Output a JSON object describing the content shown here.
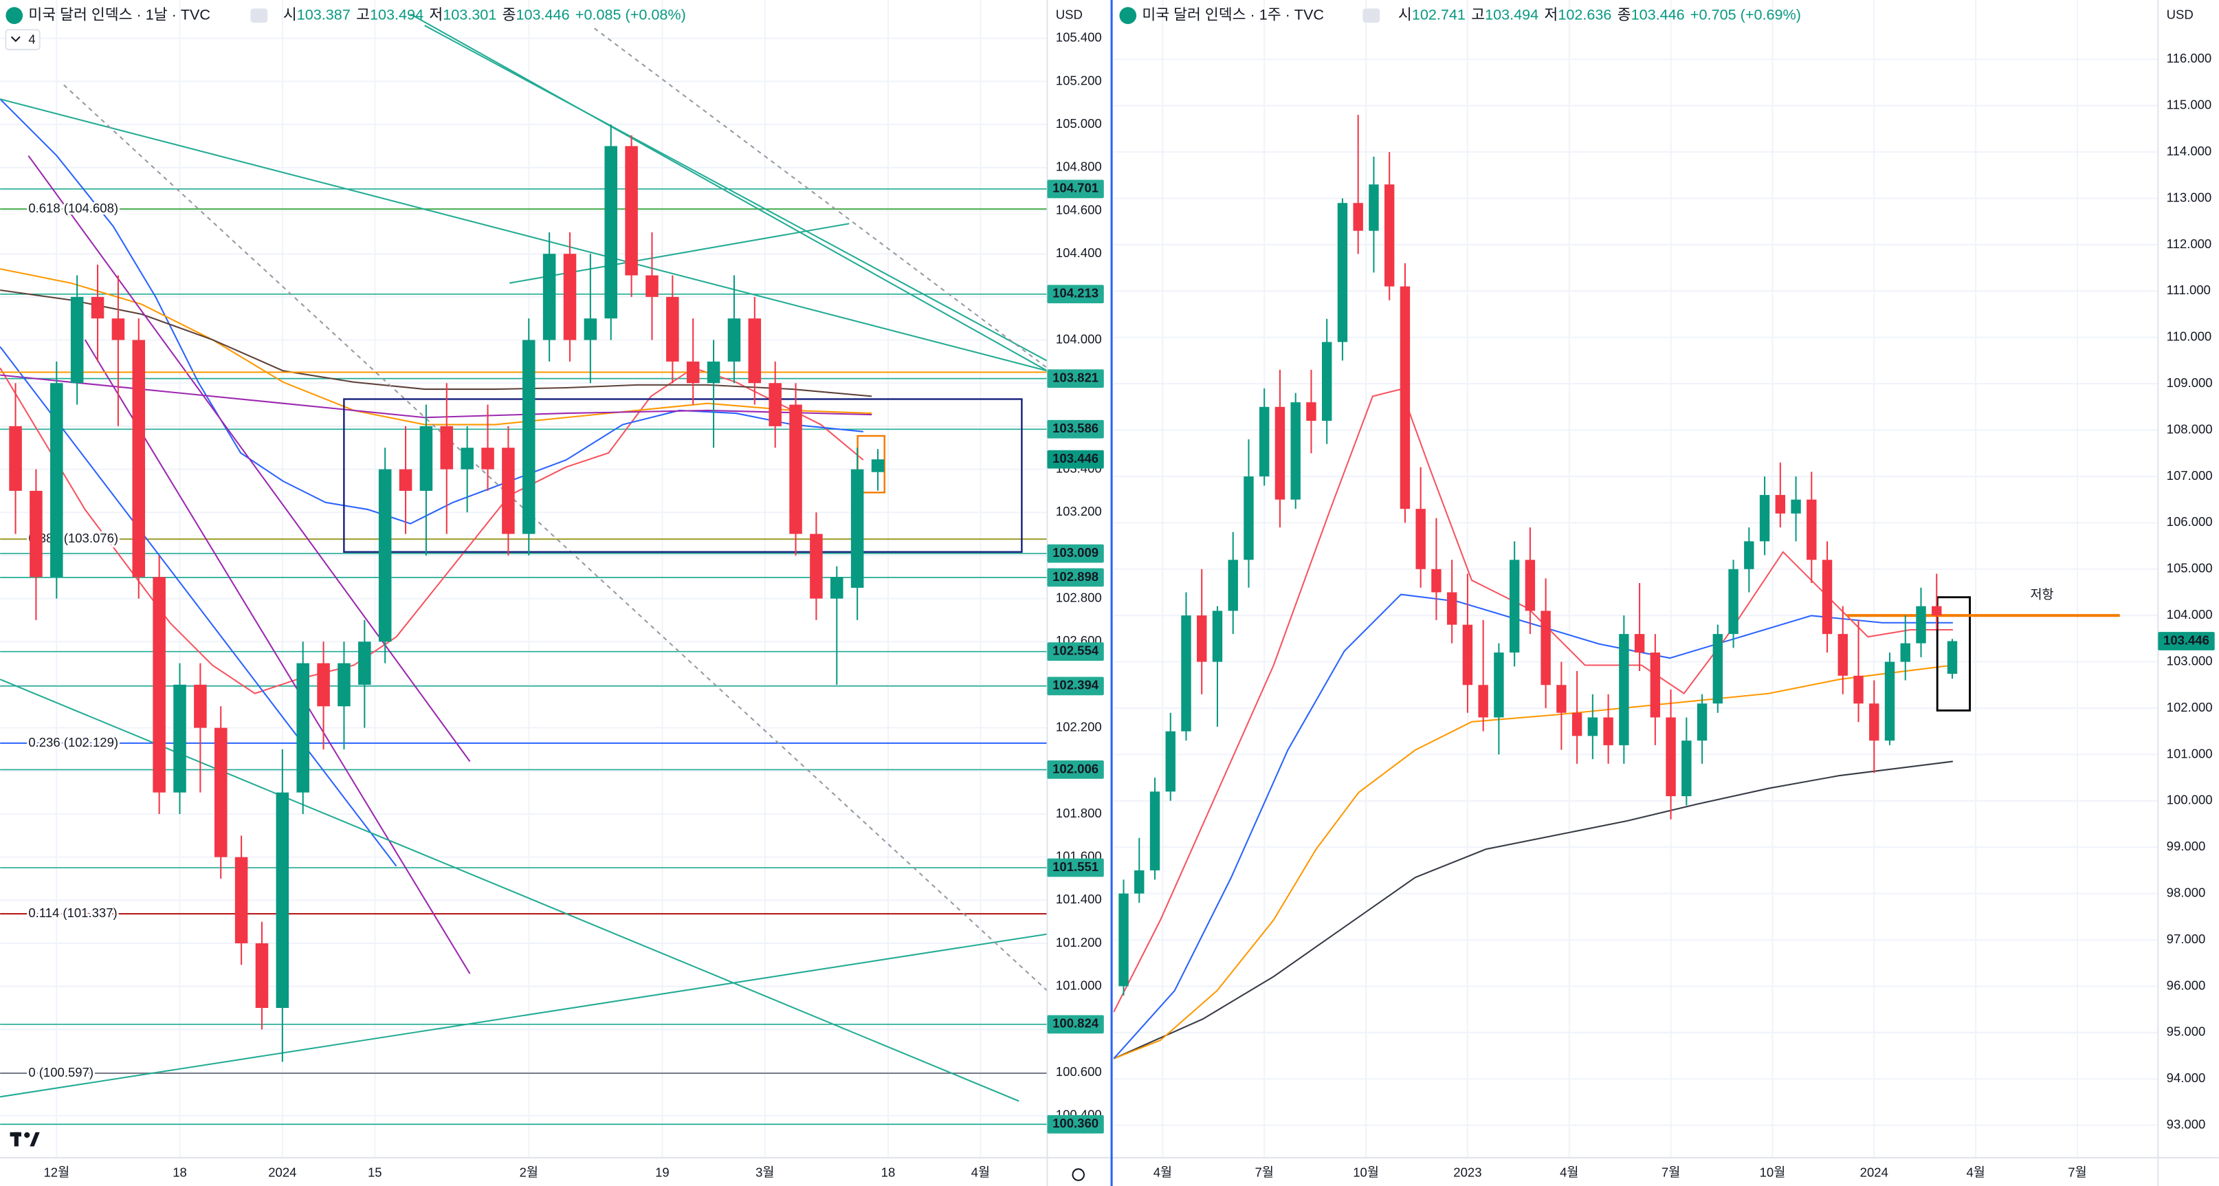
{
  "chart_data": [
    {
      "type": "candlestick",
      "title": "미국 달러 인덱스 · 1날 · TVC",
      "header": [
        {
          "label": "시",
          "text": "103.387"
        },
        {
          "label": "고",
          "text": "103.494"
        },
        {
          "label": "저",
          "text": "103.301"
        },
        {
          "label": "종",
          "text": "103.446"
        }
      ],
      "change": "+0.085 (+0.08%)",
      "currency": "USD",
      "badge": "4",
      "up_color": "#089981",
      "down_color": "#f23645",
      "candles": [
        [
          103.6,
          103.8,
          103.1,
          103.3
        ],
        [
          103.3,
          103.4,
          102.7,
          102.9
        ],
        [
          102.9,
          103.9,
          102.8,
          103.8
        ],
        [
          103.8,
          104.3,
          103.7,
          104.2
        ],
        [
          104.2,
          104.35,
          103.9,
          104.1
        ],
        [
          104.1,
          104.3,
          103.6,
          104.0
        ],
        [
          104.0,
          104.1,
          102.8,
          102.9
        ],
        [
          102.9,
          103.0,
          101.8,
          101.9
        ],
        [
          101.9,
          102.5,
          101.8,
          102.4
        ],
        [
          102.4,
          102.5,
          101.9,
          102.2
        ],
        [
          102.2,
          102.3,
          101.5,
          101.6
        ],
        [
          101.6,
          101.7,
          101.1,
          101.2
        ],
        [
          101.2,
          101.3,
          100.8,
          100.9
        ],
        [
          100.9,
          102.1,
          100.65,
          101.9
        ],
        [
          101.9,
          102.6,
          101.8,
          102.5
        ],
        [
          102.5,
          102.6,
          102.1,
          102.3
        ],
        [
          102.3,
          102.6,
          102.1,
          102.5
        ],
        [
          102.4,
          102.7,
          102.2,
          102.6
        ],
        [
          102.6,
          103.5,
          102.5,
          103.4
        ],
        [
          103.4,
          103.6,
          103.1,
          103.3
        ],
        [
          103.3,
          103.7,
          103.0,
          103.6
        ],
        [
          103.6,
          103.8,
          103.1,
          103.4
        ],
        [
          103.4,
          103.6,
          103.2,
          103.5
        ],
        [
          103.5,
          103.7,
          103.3,
          103.4
        ],
        [
          103.5,
          103.6,
          103.0,
          103.1
        ],
        [
          103.1,
          104.1,
          103.0,
          104.0
        ],
        [
          104.0,
          104.5,
          103.9,
          104.4
        ],
        [
          104.4,
          104.5,
          103.9,
          104.0
        ],
        [
          104.0,
          104.4,
          103.8,
          104.1
        ],
        [
          104.1,
          105.0,
          104.0,
          104.9
        ],
        [
          104.9,
          104.95,
          104.2,
          104.3
        ],
        [
          104.3,
          104.5,
          104.0,
          104.2
        ],
        [
          104.2,
          104.3,
          103.8,
          103.9
        ],
        [
          103.9,
          104.1,
          103.7,
          103.8
        ],
        [
          103.8,
          104.0,
          103.5,
          103.9
        ],
        [
          103.9,
          104.3,
          103.8,
          104.1
        ],
        [
          104.1,
          104.2,
          103.7,
          103.8
        ],
        [
          103.8,
          103.9,
          103.5,
          103.6
        ],
        [
          103.7,
          103.8,
          103.0,
          103.1
        ],
        [
          103.1,
          103.2,
          102.7,
          102.8
        ],
        [
          102.8,
          102.95,
          102.4,
          102.9
        ],
        [
          102.85,
          103.5,
          102.7,
          103.4
        ],
        [
          103.387,
          103.494,
          103.301,
          103.446
        ]
      ],
      "xlim": [
        -0.75,
        50.25
      ],
      "xticks": [
        {
          "value": 2,
          "label": "12월"
        },
        {
          "value": 8,
          "label": "18"
        },
        {
          "value": 13,
          "label": "2024"
        },
        {
          "value": 17.5,
          "label": "15"
        },
        {
          "value": 25,
          "label": "2월"
        },
        {
          "value": 31.5,
          "label": "19"
        },
        {
          "value": 36.5,
          "label": "3월"
        },
        {
          "value": 42.5,
          "label": "18"
        },
        {
          "value": 47,
          "label": "4월"
        }
      ],
      "ylim": [
        100.205,
        105.578
      ],
      "yticks": [
        {
          "value": 100.4,
          "label": "100.400"
        },
        {
          "value": 100.6,
          "label": "100.600"
        },
        {
          "value": 100.8,
          "label": "100.800"
        },
        {
          "value": 101,
          "label": "101.000"
        },
        {
          "value": 101.2,
          "label": "101.200"
        },
        {
          "value": 101.4,
          "label": "101.400"
        },
        {
          "value": 101.6,
          "label": "101.600"
        },
        {
          "value": 101.8,
          "label": "101.800"
        },
        {
          "value": 102,
          "label": "102.000"
        },
        {
          "value": 102.2,
          "label": "102.200"
        },
        {
          "value": 102.4,
          "label": "102.400"
        },
        {
          "value": 102.6,
          "label": "102.600"
        },
        {
          "value": 102.8,
          "label": "102.800"
        },
        {
          "value": 103,
          "label": "103.000"
        },
        {
          "value": 103.2,
          "label": "103.200"
        },
        {
          "value": 103.4,
          "label": "103.400"
        },
        {
          "value": 103.6,
          "label": "103.600"
        },
        {
          "value": 103.8,
          "label": "103.800"
        },
        {
          "value": 104,
          "label": "104.000"
        },
        {
          "value": 104.2,
          "label": "104.200"
        },
        {
          "value": 104.4,
          "label": "104.400"
        },
        {
          "value": 104.6,
          "label": "104.600"
        },
        {
          "value": 104.8,
          "label": "104.800"
        },
        {
          "value": 105,
          "label": "105.000"
        },
        {
          "value": 105.2,
          "label": "105.200"
        },
        {
          "value": 105.4,
          "label": "105.400"
        }
      ],
      "grid": true,
      "level_color": "#22ab94",
      "levels": [
        104.701,
        104.213,
        103.821,
        103.586,
        103.009,
        102.898,
        102.554,
        102.394,
        102.006,
        101.551,
        100.824,
        {
          "value": 100.36,
          "label": "100.360"
        }
      ],
      "fib_levels": [
        {
          "label": "0.618 (104.608)",
          "value": 104.608,
          "color": "#4caf50"
        },
        {
          "label": "0.382 (103.076)",
          "value": 103.076,
          "color": "#9c9c27"
        },
        {
          "label": "0.236 (102.129)",
          "value": 102.129,
          "color": "#2962ff"
        },
        {
          "label": "0.114 (101.337)",
          "value": 101.337,
          "color": "#b71c1c"
        },
        {
          "label": "0 (100.597)",
          "value": 100.597,
          "color": "#787b86"
        }
      ]
    },
    {
      "type": "candlestick",
      "title": "미국 달러 인덱스 · 1주 · TVC",
      "header": [
        {
          "label": "시",
          "text": "102.741"
        },
        {
          "label": "고",
          "text": "103.494"
        },
        {
          "label": "저",
          "text": "102.636"
        },
        {
          "label": "종",
          "text": "103.446"
        }
      ],
      "change": "+0.705 (+0.69%)",
      "currency": "USD",
      "up_color": "#089981",
      "down_color": "#f23645",
      "candles": [
        [
          96.0,
          98.3,
          95.8,
          98.0
        ],
        [
          98.0,
          99.2,
          97.8,
          98.5
        ],
        [
          98.5,
          100.5,
          98.3,
          100.2
        ],
        [
          100.2,
          101.9,
          100.0,
          101.5
        ],
        [
          101.5,
          104.5,
          101.3,
          104.0
        ],
        [
          104.0,
          105.0,
          102.3,
          103.0
        ],
        [
          103.0,
          104.2,
          101.6,
          104.1
        ],
        [
          104.1,
          105.8,
          103.6,
          105.2
        ],
        [
          105.2,
          107.8,
          104.6,
          107.0
        ],
        [
          107.0,
          108.9,
          106.8,
          108.5
        ],
        [
          108.5,
          109.3,
          105.9,
          106.5
        ],
        [
          106.5,
          108.8,
          106.3,
          108.6
        ],
        [
          108.6,
          109.3,
          107.5,
          108.2
        ],
        [
          108.2,
          110.4,
          107.7,
          109.9
        ],
        [
          109.9,
          113.0,
          109.5,
          112.9
        ],
        [
          112.9,
          114.8,
          111.8,
          112.3
        ],
        [
          112.3,
          113.9,
          111.4,
          113.3
        ],
        [
          113.3,
          114.0,
          110.8,
          111.1
        ],
        [
          111.1,
          111.6,
          106.0,
          106.3
        ],
        [
          106.3,
          107.2,
          104.6,
          105.0
        ],
        [
          105.0,
          106.1,
          103.9,
          104.5
        ],
        [
          104.5,
          105.2,
          103.4,
          103.8
        ],
        [
          103.8,
          104.9,
          101.9,
          102.5
        ],
        [
          102.5,
          103.9,
          101.5,
          101.8
        ],
        [
          101.8,
          103.4,
          101.0,
          103.2
        ],
        [
          103.2,
          105.6,
          102.9,
          105.2
        ],
        [
          105.2,
          105.9,
          103.6,
          104.1
        ],
        [
          104.1,
          104.8,
          102.0,
          102.5
        ],
        [
          102.5,
          103.0,
          101.1,
          101.9
        ],
        [
          101.9,
          102.8,
          100.8,
          101.4
        ],
        [
          101.4,
          102.3,
          100.9,
          101.8
        ],
        [
          101.8,
          102.3,
          100.8,
          101.2
        ],
        [
          101.2,
          104.0,
          100.8,
          103.6
        ],
        [
          103.6,
          104.7,
          102.8,
          103.2
        ],
        [
          103.2,
          103.6,
          101.2,
          101.8
        ],
        [
          101.8,
          102.4,
          99.6,
          100.1
        ],
        [
          100.1,
          101.8,
          99.9,
          101.3
        ],
        [
          101.3,
          102.3,
          100.8,
          102.1
        ],
        [
          102.1,
          103.8,
          101.9,
          103.6
        ],
        [
          103.6,
          105.2,
          103.3,
          105.0
        ],
        [
          105.0,
          105.9,
          104.5,
          105.6
        ],
        [
          105.6,
          107.0,
          105.3,
          106.6
        ],
        [
          106.6,
          107.3,
          105.9,
          106.2
        ],
        [
          106.2,
          107.0,
          105.6,
          106.5
        ],
        [
          106.5,
          107.1,
          104.7,
          105.2
        ],
        [
          105.2,
          105.6,
          103.2,
          103.6
        ],
        [
          103.6,
          104.2,
          102.3,
          102.7
        ],
        [
          102.7,
          103.9,
          101.7,
          102.1
        ],
        [
          102.1,
          102.6,
          100.6,
          101.3
        ],
        [
          101.3,
          103.2,
          101.2,
          103.0
        ],
        [
          103.0,
          104.0,
          102.6,
          103.4
        ],
        [
          103.4,
          104.6,
          103.1,
          104.2
        ],
        [
          104.2,
          104.9,
          103.7,
          104.0
        ],
        [
          102.741,
          103.494,
          102.636,
          103.446
        ]
      ],
      "xlim": [
        -0.63,
        66.16
      ],
      "xticks": [
        {
          "value": 2.5,
          "label": "4월"
        },
        {
          "value": 9,
          "label": "7월"
        },
        {
          "value": 15.5,
          "label": "10월"
        },
        {
          "value": 22,
          "label": "2023"
        },
        {
          "value": 28.5,
          "label": "4월"
        },
        {
          "value": 35,
          "label": "7월"
        },
        {
          "value": 41.5,
          "label": "10월"
        },
        {
          "value": 48,
          "label": "2024"
        },
        {
          "value": 54.5,
          "label": "4월"
        },
        {
          "value": 61,
          "label": "7월"
        }
      ],
      "ylim": [
        92.3,
        117.28
      ],
      "yticks": [
        {
          "value": 93,
          "label": "93.000"
        },
        {
          "value": 94,
          "label": "94.000"
        },
        {
          "value": 95,
          "label": "95.000"
        },
        {
          "value": 96,
          "label": "96.000"
        },
        {
          "value": 97,
          "label": "97.000"
        },
        {
          "value": 98,
          "label": "98.000"
        },
        {
          "value": 99,
          "label": "99.000"
        },
        {
          "value": 100,
          "label": "100.000"
        },
        {
          "value": 101,
          "label": "101.000"
        },
        {
          "value": 102,
          "label": "102.000"
        },
        {
          "value": 103,
          "label": "103.000"
        },
        {
          "value": 104,
          "label": "104.000"
        },
        {
          "value": 105,
          "label": "105.000"
        },
        {
          "value": 106,
          "label": "106.000"
        },
        {
          "value": 107,
          "label": "107.000"
        },
        {
          "value": 108,
          "label": "108.000"
        },
        {
          "value": 109,
          "label": "109.000"
        },
        {
          "value": 110,
          "label": "110.000"
        },
        {
          "value": 111,
          "label": "111.000"
        },
        {
          "value": 112,
          "label": "112.000"
        },
        {
          "value": 113,
          "label": "113.000"
        },
        {
          "value": 114,
          "label": "114.000"
        },
        {
          "value": 115,
          "label": "115.000"
        },
        {
          "value": 116,
          "label": "116.000"
        }
      ],
      "grid": true,
      "resistance": {
        "label": "저항",
        "value": 104,
        "color": "#f57c00"
      }
    }
  ]
}
